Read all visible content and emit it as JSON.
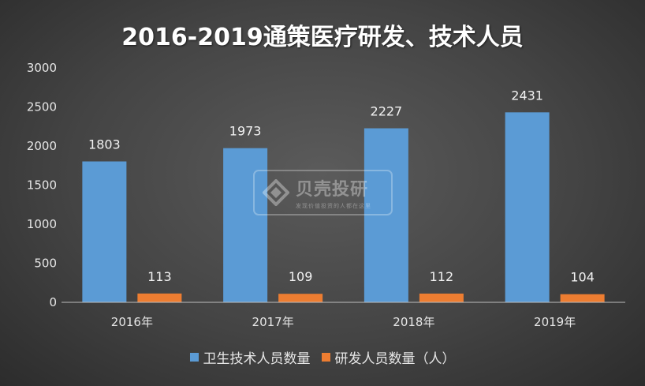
{
  "chart_data": {
    "type": "bar",
    "title": "2016-2019通策医疗研发、技术人员",
    "categories": [
      "2016年",
      "2017年",
      "2018年",
      "2019年"
    ],
    "series": [
      {
        "name": "卫生技术人员数量",
        "values": [
          1803,
          1973,
          2227,
          2431
        ],
        "color": "#5b9bd5"
      },
      {
        "name": "研发人员数量（人）",
        "values": [
          113,
          109,
          112,
          104
        ],
        "color": "#ed7d31"
      }
    ],
    "ylim": [
      0,
      3000
    ],
    "yticks": [
      0,
      500,
      1000,
      1500,
      2000,
      2500,
      3000
    ],
    "grid": false,
    "legend_position": "bottom"
  },
  "watermark": {
    "brand": "贝壳投研",
    "slogan": "发现价值投资的人都在这里",
    "logo_icon": "diamond-logo-icon"
  }
}
